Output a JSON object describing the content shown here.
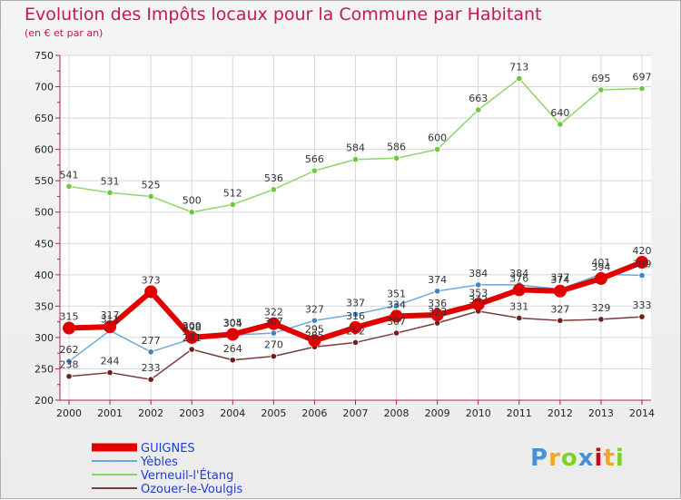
{
  "header": {
    "title": "Evolution des Impôts locaux pour la Commune par Habitant",
    "subtitle": "(en € et par an)"
  },
  "logo": {
    "text": "Proxiti",
    "colors": [
      "#4a90d9",
      "#f5a623",
      "#7ed321",
      "#4a90d9",
      "#d0021b",
      "#f5a623",
      "#7ed321"
    ]
  },
  "chart_data": {
    "type": "line",
    "title": "Evolution des Impôts locaux pour la Commune par Habitant",
    "subtitle": "(en € et par an)",
    "x": [
      "2000",
      "2001",
      "2002",
      "2003",
      "2004",
      "2005",
      "2006",
      "2007",
      "2008",
      "2009",
      "2010",
      "2011",
      "2012",
      "2013",
      "2014"
    ],
    "ylim": [
      200,
      750
    ],
    "yticks": [
      200,
      250,
      300,
      350,
      400,
      450,
      500,
      550,
      600,
      650,
      700,
      750
    ],
    "grid": true,
    "legend_position": "bottom-left",
    "series": [
      {
        "name": "Verneuil-l'Étang",
        "color": "#8fd46a",
        "marker": "#6cc83c",
        "values": [
          541,
          531,
          525,
          500,
          512,
          536,
          566,
          584,
          586,
          600,
          663,
          713,
          640,
          695,
          697
        ]
      },
      {
        "name": "Ozouer-le-Voulgis",
        "color": "#7a3b3b",
        "marker": "#6b1f1f",
        "values": [
          238,
          244,
          233,
          281,
          264,
          270,
          285,
          292,
          307,
          323,
          342,
          331,
          327,
          329,
          333
        ]
      },
      {
        "name": "Yèbles",
        "color": "#6fa8dc",
        "marker": "#3d85c6",
        "values": [
          262,
          311,
          277,
          298,
          304,
          307,
          327,
          337,
          351,
          374,
          384,
          384,
          377,
          401,
          399
        ]
      },
      {
        "name": "GUIGNES",
        "color": "#e00000",
        "marker": "#e00000",
        "values": [
          315,
          317,
          373,
          300,
          305,
          322,
          295,
          316,
          334,
          336,
          353,
          376,
          374,
          394,
          420
        ]
      }
    ],
    "labels": {
      "Verneuil-l'Étang": [
        "541",
        "531",
        "525",
        "500",
        "512",
        "536",
        "566",
        "584",
        "586",
        "600",
        "663",
        "713",
        "640",
        "695",
        "697"
      ],
      "Ozouer-le-Voulgis": [
        "238",
        "244",
        "233",
        "281",
        "264",
        "270",
        "285",
        "292",
        "307",
        "323",
        "342",
        "331",
        "327",
        "329",
        "333"
      ],
      "Yèbles": [
        "262",
        "311",
        "277",
        "298",
        "304",
        "307",
        "327",
        "337",
        "351",
        "374",
        "384",
        "384",
        "377",
        "401",
        "399"
      ],
      "GUIGNES": [
        "315",
        "317",
        "373",
        "300",
        "305",
        "322",
        "295",
        "316",
        "334",
        "336",
        "353",
        "376",
        "374",
        "394",
        "420"
      ]
    }
  },
  "legend": [
    {
      "name": "GUIGNES",
      "color": "#e00000",
      "text_color": "#1f3fd1"
    },
    {
      "name": "Yèbles",
      "color": "#6fa8dc",
      "text_color": "#1f3fd1"
    },
    {
      "name": "Verneuil-l'Étang",
      "color": "#8fd46a",
      "text_color": "#1f3fd1"
    },
    {
      "name": "Ozouer-le-Voulgis",
      "color": "#7a3b3b",
      "text_color": "#1f3fd1"
    }
  ]
}
